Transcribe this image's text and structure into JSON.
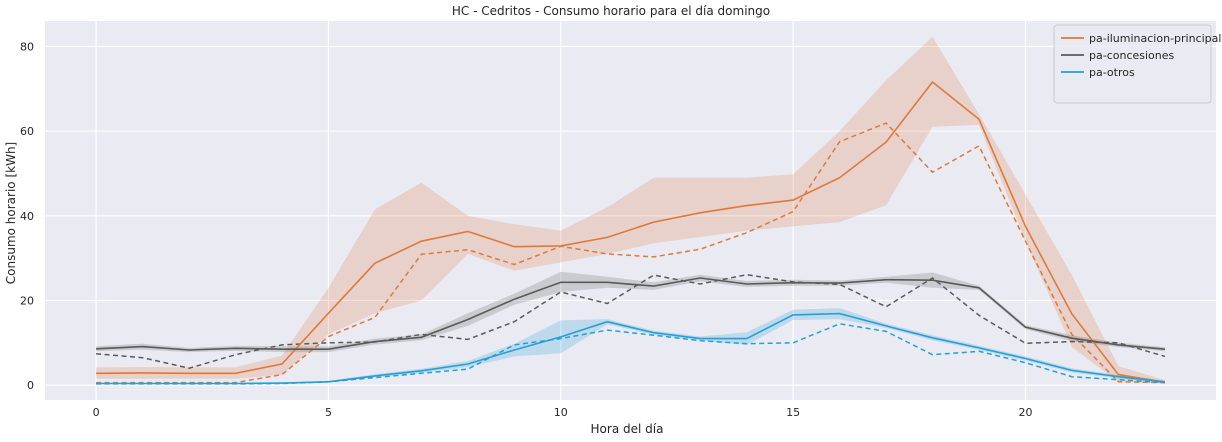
{
  "chart_data": {
    "type": "line",
    "title": "HC - Cedritos - Consumo horario para el día domingo",
    "xlabel": "Hora del día",
    "ylabel": "Consumo horario [kWh]",
    "xlim": [
      -1.1,
      24.1
    ],
    "ylim": [
      -3.5,
      86
    ],
    "xticks": [
      0,
      5,
      10,
      15,
      20
    ],
    "yticks": [
      0,
      20,
      40,
      60,
      80
    ],
    "grid": true,
    "background": "#eaeaf2",
    "legend_position": "top-right",
    "x": [
      0,
      1,
      2,
      3,
      4,
      5,
      6,
      7,
      8,
      9,
      10,
      11,
      12,
      13,
      14,
      15,
      16,
      17,
      18,
      19,
      20,
      21,
      22,
      23
    ],
    "series": [
      {
        "name": "pa-iluminacion-principal",
        "color": "#dd7a3a",
        "values": [
          2.8,
          2.9,
          2.8,
          2.8,
          5.0,
          17.0,
          28.8,
          34.0,
          36.3,
          32.7,
          32.9,
          34.9,
          38.5,
          40.7,
          42.4,
          43.7,
          49.0,
          57.4,
          71.6,
          62.8,
          37.5,
          16.8,
          2.5,
          0.7
        ],
        "ci_lower": [
          1.5,
          1.5,
          1.5,
          1.5,
          2.5,
          12.0,
          17.0,
          20.0,
          31.0,
          27.0,
          29.0,
          31.0,
          33.5,
          35.0,
          36.5,
          37.5,
          38.5,
          42.5,
          61.0,
          61.5,
          34.0,
          9.0,
          0.8,
          0.4
        ],
        "ci_upper": [
          4.2,
          4.3,
          4.2,
          4.2,
          7.0,
          23.0,
          41.5,
          47.8,
          40.0,
          38.0,
          36.5,
          42.0,
          49.0,
          49.0,
          49.0,
          49.8,
          60.0,
          72.0,
          82.3,
          64.0,
          45.0,
          26.0,
          4.5,
          1.2
        ],
        "reference": [
          0.6,
          0.6,
          0.6,
          0.6,
          2.5,
          11.5,
          16.0,
          30.9,
          32.0,
          28.5,
          32.8,
          31.0,
          30.3,
          32.1,
          36.0,
          41.0,
          57.5,
          61.9,
          50.3,
          56.5,
          34.0,
          12.0,
          0.8,
          0.6
        ]
      },
      {
        "name": "pa-concesiones",
        "color": "#5a5a5a",
        "values": [
          8.6,
          9.1,
          8.3,
          8.7,
          8.5,
          8.5,
          10.3,
          11.3,
          15.5,
          20.3,
          24.3,
          24.3,
          23.4,
          25.3,
          23.9,
          24.2,
          24.1,
          24.9,
          24.8,
          23.0,
          13.7,
          11.1,
          9.5,
          8.5
        ],
        "ci_lower": [
          8.0,
          8.4,
          7.8,
          8.1,
          7.8,
          7.8,
          9.6,
          10.6,
          14.0,
          19.0,
          22.0,
          23.0,
          22.5,
          24.5,
          23.2,
          23.5,
          23.5,
          24.2,
          23.0,
          22.5,
          13.2,
          10.4,
          9.0,
          8.0
        ],
        "ci_upper": [
          9.2,
          9.8,
          8.8,
          9.3,
          9.2,
          9.2,
          11.0,
          12.0,
          17.0,
          21.6,
          26.8,
          25.6,
          24.3,
          26.1,
          24.6,
          24.9,
          24.7,
          25.6,
          26.6,
          23.5,
          14.2,
          11.8,
          10.0,
          9.0
        ],
        "reference": [
          7.4,
          6.5,
          4.0,
          7.2,
          9.5,
          10.0,
          10.2,
          12.0,
          10.8,
          15.0,
          22.0,
          19.3,
          26.0,
          23.9,
          26.1,
          24.4,
          23.8,
          18.5,
          25.3,
          16.5,
          9.9,
          10.3,
          10.0,
          6.8
        ]
      },
      {
        "name": "pa-otros",
        "color": "#23a1d3",
        "values": [
          0.4,
          0.4,
          0.4,
          0.4,
          0.5,
          0.8,
          2.2,
          3.4,
          5.0,
          8.3,
          11.4,
          15.0,
          12.4,
          11.0,
          11.0,
          16.6,
          16.9,
          14.0,
          11.2,
          8.8,
          6.3,
          3.5,
          2.0,
          0.8
        ],
        "ci_lower": [
          0.3,
          0.3,
          0.3,
          0.3,
          0.4,
          0.6,
          1.8,
          2.9,
          4.3,
          6.8,
          7.5,
          14.4,
          11.9,
          10.5,
          9.5,
          15.4,
          15.6,
          13.5,
          10.6,
          8.3,
          5.8,
          3.0,
          1.6,
          0.6
        ],
        "ci_upper": [
          0.5,
          0.5,
          0.5,
          0.5,
          0.6,
          1.0,
          2.6,
          3.9,
          5.7,
          9.8,
          15.3,
          15.6,
          12.9,
          11.5,
          12.5,
          17.8,
          18.2,
          14.5,
          11.8,
          9.3,
          6.8,
          4.0,
          2.4,
          1.0
        ],
        "reference": [
          0.3,
          0.3,
          0.3,
          0.3,
          0.4,
          0.8,
          1.8,
          2.8,
          3.8,
          9.5,
          11.0,
          13.0,
          11.8,
          10.5,
          9.8,
          10.0,
          14.5,
          12.7,
          7.2,
          8.0,
          5.3,
          2.0,
          1.3,
          0.6
        ]
      }
    ]
  }
}
